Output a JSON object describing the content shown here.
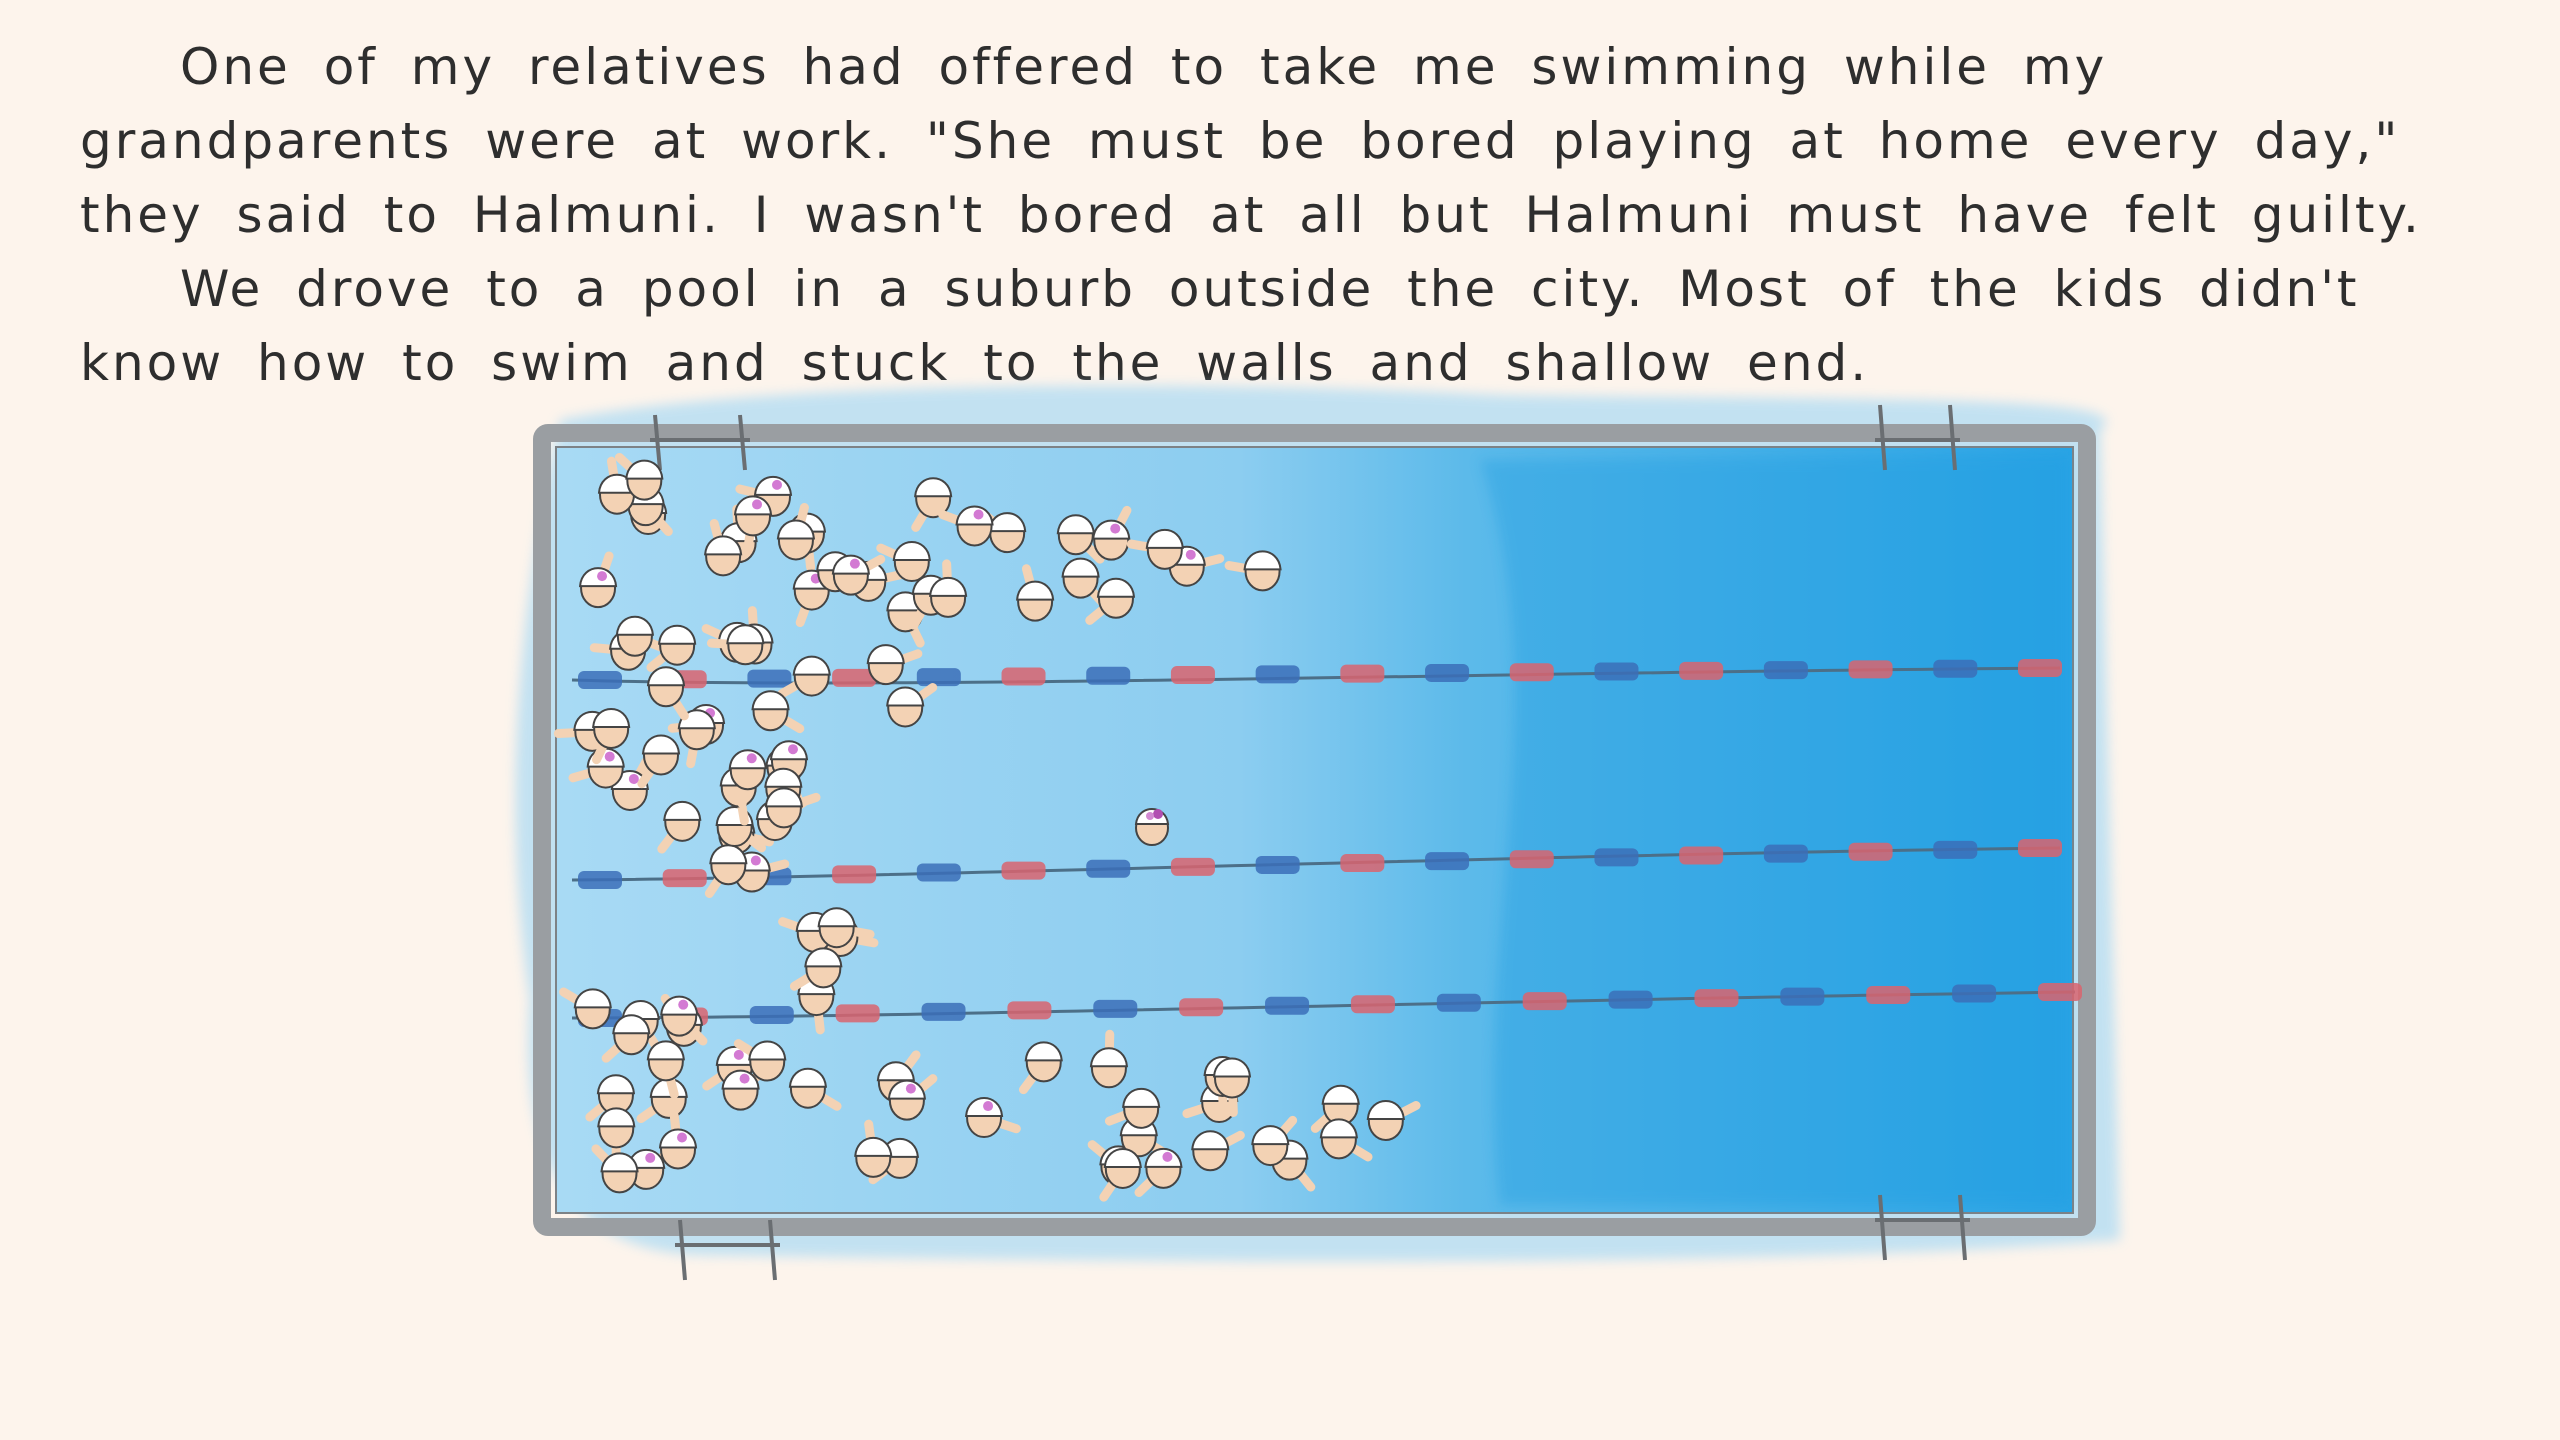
{
  "narration": {
    "paragraphs": [
      "One of my relatives had offered to take me swimming while my grandparents were at work. \"She must be bored playing at home every day,\" they said to Halmuni. I wasn't bored at all but Halmuni must have felt guilty.",
      "We drove to a pool in a suburb outside the city. Most of the kids didn't know how to swim and stuck to the walls and shallow end."
    ]
  },
  "illustration": {
    "subject": "swimming pool viewed from above",
    "colors": {
      "paper": "#fdf4ec",
      "ink": "#2e2e2e",
      "water_light": "#9fd5f2",
      "water_deep": "#2aa6e6",
      "deck": "#9a9ea2",
      "lane_float_blue": "#3b6fb8",
      "lane_float_red": "#d9646e",
      "skin": "#f3d2b4",
      "swim_cap": "#ffffff"
    }
  }
}
